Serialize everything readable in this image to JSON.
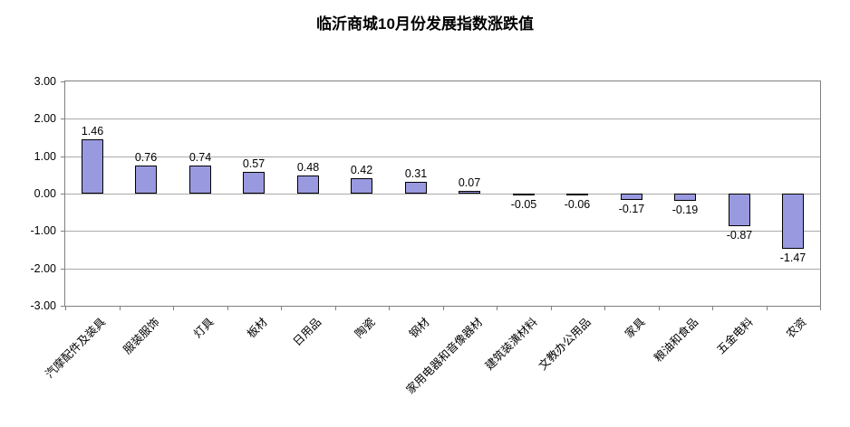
{
  "title": "临沂商城10月份发展指数涨跌值",
  "chart_data": {
    "type": "bar",
    "title": "临沂商城10月份发展指数涨跌值",
    "categories": [
      "汽摩配件及装具",
      "服装服饰",
      "灯具",
      "板材",
      "日用品",
      "陶瓷",
      "钢材",
      "家用电器和音像器材",
      "建筑装潢材料",
      "文教办公用品",
      "家具",
      "粮油和食品",
      "五金电料",
      "农资"
    ],
    "values": [
      1.46,
      0.76,
      0.74,
      0.57,
      0.48,
      0.42,
      0.31,
      0.07,
      -0.05,
      -0.06,
      -0.17,
      -0.19,
      -0.87,
      -1.47
    ],
    "value_labels": [
      "1.46",
      "0.76",
      "0.74",
      "0.57",
      "0.48",
      "0.42",
      "0.31",
      "0.07",
      "-0.05",
      "-0.06",
      "-0.17",
      "-0.19",
      "-0.87",
      "-1.47"
    ],
    "xlabel": "",
    "ylabel": "",
    "ylim": [
      -3,
      3
    ],
    "ytick_step": 1,
    "ytick_labels": [
      "3.00",
      "2.00",
      "1.00",
      "0.00",
      "-1.00",
      "-2.00",
      "-3.00"
    ],
    "grid": true,
    "legend": "none",
    "bar_color": "#9999e0",
    "bar_border_color": "#000000",
    "grid_color": "#aaaaaa",
    "frame_color": "#808080"
  }
}
